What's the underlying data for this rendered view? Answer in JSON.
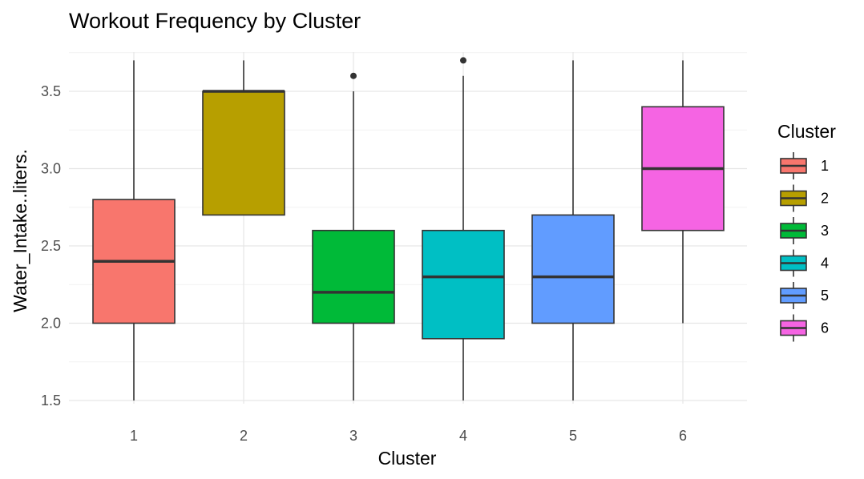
{
  "chart_data": {
    "type": "boxplot",
    "title": "Workout Frequency by Cluster",
    "xlabel": "Cluster",
    "ylabel": "Water_Intake..liters.",
    "categories": [
      "1",
      "2",
      "3",
      "4",
      "5",
      "6"
    ],
    "y_ticks": [
      "1.5",
      "2.0",
      "2.5",
      "3.0",
      "3.5"
    ],
    "ylim": [
      1.45,
      3.75
    ],
    "grid": true,
    "legend": {
      "title": "Cluster",
      "placement": "right",
      "entries": [
        "1",
        "2",
        "3",
        "4",
        "5",
        "6"
      ]
    },
    "colors": [
      "#F8766D",
      "#B79F00",
      "#00BA38",
      "#00BFC4",
      "#619CFF",
      "#F564E3"
    ],
    "boxes": [
      {
        "cluster": "1",
        "whisker_low": 1.5,
        "q1": 2.0,
        "median": 2.4,
        "q3": 2.8,
        "whisker_high": 3.7,
        "outliers": []
      },
      {
        "cluster": "2",
        "whisker_low": 2.7,
        "q1": 2.7,
        "median": 3.5,
        "q3": 3.5,
        "whisker_high": 3.7,
        "outliers": []
      },
      {
        "cluster": "3",
        "whisker_low": 1.5,
        "q1": 2.0,
        "median": 2.2,
        "q3": 2.6,
        "whisker_high": 3.5,
        "outliers": [
          3.6
        ]
      },
      {
        "cluster": "4",
        "whisker_low": 1.5,
        "q1": 1.9,
        "median": 2.3,
        "q3": 2.6,
        "whisker_high": 3.6,
        "outliers": [
          3.7
        ]
      },
      {
        "cluster": "5",
        "whisker_low": 1.5,
        "q1": 2.0,
        "median": 2.3,
        "q3": 2.7,
        "whisker_high": 3.7,
        "outliers": []
      },
      {
        "cluster": "6",
        "whisker_low": 2.0,
        "q1": 2.6,
        "median": 3.0,
        "q3": 3.4,
        "whisker_high": 3.7,
        "outliers": []
      }
    ]
  }
}
